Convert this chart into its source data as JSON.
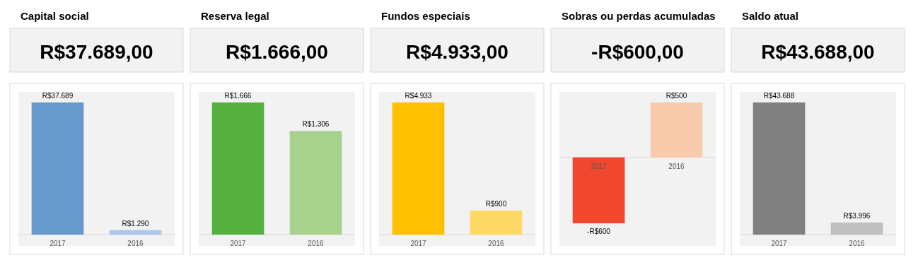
{
  "chart_data": [
    {
      "type": "bar",
      "title": "Capital social",
      "annotations": [
        "R$37.689,00"
      ],
      "categories": [
        "2017",
        "2016"
      ],
      "values": [
        37689,
        1290
      ],
      "colors": [
        "#6699cc",
        "#adc6e8"
      ],
      "value_labels": [
        "R$37.689",
        "R$1.290"
      ]
    },
    {
      "type": "bar",
      "title": "Reserva legal",
      "annotations": [
        "R$1.666,00"
      ],
      "categories": [
        "2017",
        "2016"
      ],
      "values": [
        1666,
        1306
      ],
      "colors": [
        "#55b03f",
        "#a9d18e"
      ],
      "value_labels": [
        "R$1.666",
        "R$1.306"
      ]
    },
    {
      "type": "bar",
      "title": "Fundos especiais",
      "annotations": [
        "R$4.933,00"
      ],
      "categories": [
        "2017",
        "2016"
      ],
      "values": [
        4933,
        900
      ],
      "colors": [
        "#ffc000",
        "#ffd966"
      ],
      "value_labels": [
        "R$4.933",
        "R$900"
      ]
    },
    {
      "type": "bar",
      "title": "Sobras ou perdas acumuladas",
      "annotations": [
        "-R$600,00"
      ],
      "categories": [
        "2017",
        "2016"
      ],
      "values": [
        -600,
        500
      ],
      "colors": [
        "#f0472e",
        "#f8cbad"
      ],
      "value_labels": [
        "-R$600",
        "R$500"
      ]
    },
    {
      "type": "bar",
      "title": "Saldo atual",
      "annotations": [
        "R$43.688,00"
      ],
      "categories": [
        "2017",
        "2016"
      ],
      "values": [
        43688,
        3996
      ],
      "colors": [
        "#808080",
        "#bfbfbf"
      ],
      "value_labels": [
        "R$43.688",
        "R$3.996"
      ]
    }
  ]
}
